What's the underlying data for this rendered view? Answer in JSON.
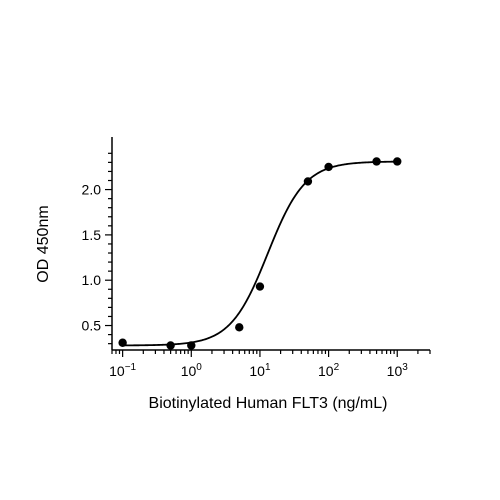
{
  "chart_data": {
    "type": "scatter",
    "xlabel": "Biotinylated Human FLT3 (ng/mL)",
    "ylabel": "OD 450nm",
    "xscale": "log",
    "xlim": [
      0.07,
      3000
    ],
    "ylim": [
      0.23,
      2.58
    ],
    "x_ticks": [
      {
        "value": 0.1,
        "base": "10",
        "exp": "−1"
      },
      {
        "value": 1,
        "base": "10",
        "exp": "0"
      },
      {
        "value": 10,
        "base": "10",
        "exp": "1"
      },
      {
        "value": 100,
        "base": "10",
        "exp": "2"
      },
      {
        "value": 1000,
        "base": "10",
        "exp": "3"
      }
    ],
    "y_ticks": [
      0.5,
      1.0,
      1.5,
      2.0
    ],
    "y_tick_labels": [
      "0.5",
      "1.0",
      "1.5",
      "2.0"
    ],
    "grid": false,
    "legend": "none",
    "series": [
      {
        "x": [
          0.1,
          0.5,
          1,
          5,
          10,
          50,
          100,
          500,
          1000
        ],
        "y": [
          0.31,
          0.28,
          0.28,
          0.48,
          0.93,
          2.09,
          2.25,
          2.31,
          2.31
        ]
      }
    ],
    "fit_curve": {
      "model": "4PL",
      "bottom": 0.28,
      "top": 2.31,
      "ec50": 13,
      "hill": 1.6
    },
    "colors": {
      "marker": "#000000",
      "line": "#000000",
      "axis": "#000000"
    }
  }
}
